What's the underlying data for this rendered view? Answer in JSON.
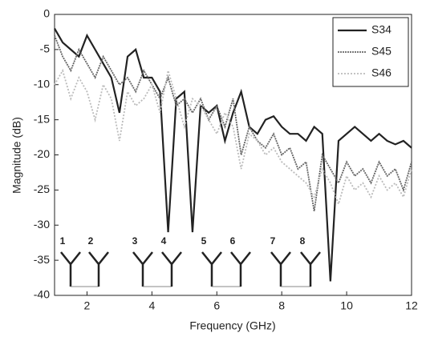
{
  "chart_data": {
    "type": "line",
    "xlabel": "Frequency (GHz)",
    "ylabel": "Magnitude (dB)",
    "xlim": [
      1,
      12
    ],
    "ylim": [
      -40,
      0
    ],
    "xticks": [
      2,
      4,
      6,
      8,
      10,
      12
    ],
    "yticks": [
      -40,
      -35,
      -30,
      -25,
      -20,
      -15,
      -10,
      -5,
      0
    ],
    "legend": "top-right",
    "annotations": [
      "1",
      "2",
      "3",
      "4",
      "5",
      "6",
      "7",
      "8"
    ],
    "x": [
      1,
      1.25,
      1.5,
      1.75,
      2,
      2.25,
      2.5,
      2.75,
      3,
      3.25,
      3.5,
      3.75,
      4,
      4.25,
      4.5,
      4.75,
      5,
      5.25,
      5.5,
      5.75,
      6,
      6.25,
      6.5,
      6.75,
      7,
      7.25,
      7.5,
      7.75,
      8,
      8.25,
      8.5,
      8.75,
      9,
      9.25,
      9.5,
      9.75,
      10,
      10.25,
      10.5,
      10.75,
      11,
      11.25,
      11.5,
      11.75,
      12
    ],
    "series": [
      {
        "name": "S34",
        "color": "#222222",
        "values": [
          -2,
          -4,
          -5,
          -6,
          -3,
          -5,
          -7,
          -9,
          -14,
          -6,
          -5,
          -9,
          -9,
          -11,
          -31,
          -12,
          -11,
          -31,
          -13,
          -14,
          -13,
          -18,
          -14,
          -11,
          -16,
          -17,
          -15,
          -14.5,
          -16,
          -17,
          -17,
          -18,
          -16,
          -17,
          -38,
          -18,
          -17,
          -16,
          -17,
          -18,
          -17,
          -18,
          -18.5,
          -18,
          -19
        ]
      },
      {
        "name": "S45",
        "color": "#666666",
        "values": [
          -3,
          -6,
          -8,
          -5,
          -7,
          -9,
          -6,
          -8,
          -10,
          -9,
          -11,
          -8,
          -10,
          -12,
          -9,
          -13,
          -12,
          -14,
          -12,
          -15,
          -13,
          -16,
          -12,
          -20,
          -16,
          -18,
          -19,
          -17,
          -20,
          -19,
          -22,
          -21,
          -28,
          -20,
          -22,
          -24,
          -21,
          -23,
          -22,
          -24,
          -21,
          -23,
          -22,
          -25,
          -21
        ]
      },
      {
        "name": "S46",
        "color": "#bbbbbb",
        "values": [
          -10,
          -8,
          -12,
          -9,
          -11,
          -15,
          -10,
          -12,
          -18,
          -11,
          -13,
          -12,
          -10,
          -14,
          -8,
          -12,
          -16,
          -12,
          -13,
          -15,
          -17,
          -14,
          -16,
          -22,
          -17,
          -18,
          -20,
          -19,
          -21,
          -22,
          -23,
          -24,
          -26,
          -22,
          -24,
          -27,
          -23,
          -25,
          -24,
          -26,
          -23,
          -25,
          -24,
          -26,
          -22
        ]
      }
    ]
  }
}
